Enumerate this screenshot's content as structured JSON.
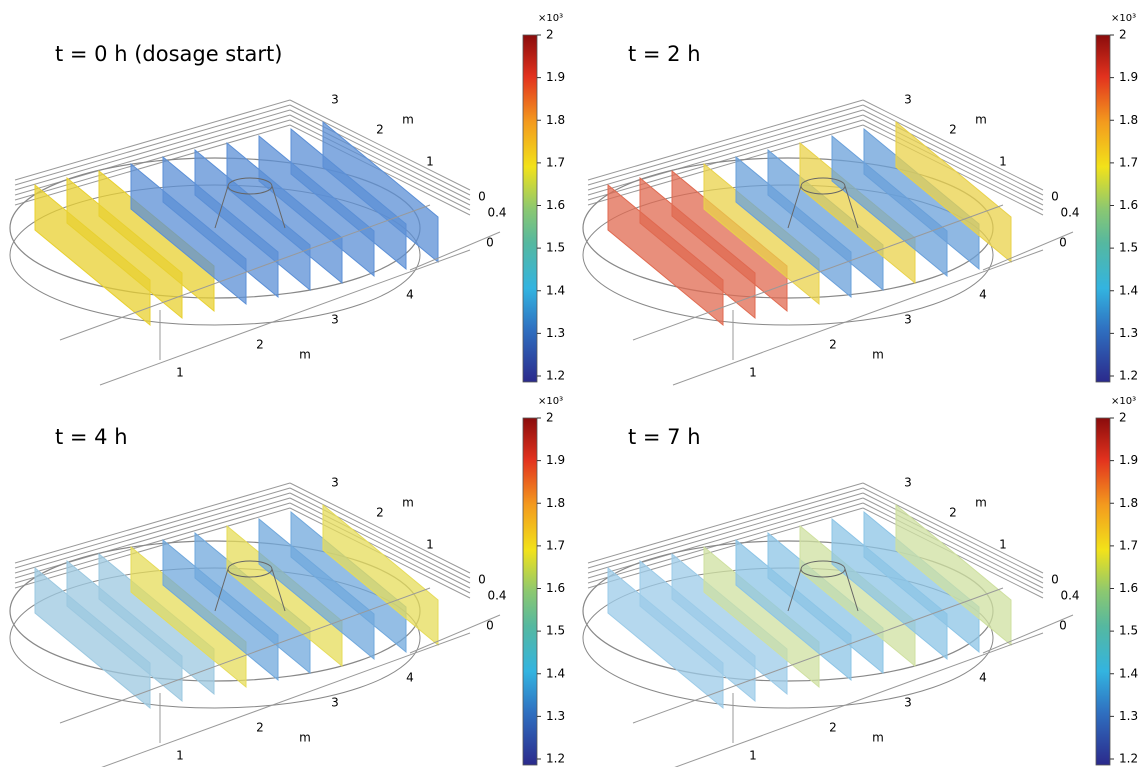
{
  "panels": [
    {
      "title": "t = 0 h (dosage start)",
      "colorbar": {
        "exponent_label": "×10³",
        "ticks": [
          2,
          1.9,
          1.8,
          1.7,
          1.6,
          1.5,
          1.4,
          1.3,
          1.2
        ]
      },
      "axis_labels": [
        "3",
        "2",
        "m",
        "1",
        "0",
        "0.4",
        "0",
        "4",
        "3",
        "2",
        "m",
        "1"
      ]
    },
    {
      "title": "t = 2 h",
      "colorbar": {
        "exponent_label": "×10³",
        "ticks": [
          2,
          1.9,
          1.8,
          1.7,
          1.6,
          1.5,
          1.4,
          1.3,
          1.2
        ]
      },
      "axis_labels": [
        "3",
        "2",
        "m",
        "1",
        "0",
        "0.4",
        "0",
        "4",
        "3",
        "2",
        "m",
        "1"
      ]
    },
    {
      "title": "t = 4 h",
      "colorbar": {
        "exponent_label": "×10³",
        "ticks": [
          2,
          1.9,
          1.8,
          1.7,
          1.6,
          1.5,
          1.4,
          1.3,
          1.2
        ]
      },
      "axis_labels": [
        "3",
        "2",
        "m",
        "1",
        "0",
        "0.4",
        "0",
        "4",
        "3",
        "2",
        "m",
        "1"
      ]
    },
    {
      "title": "t = 7 h",
      "colorbar": {
        "exponent_label": "×10³",
        "ticks": [
          2,
          1.9,
          1.8,
          1.7,
          1.6,
          1.5,
          1.4,
          1.3,
          1.2
        ]
      },
      "axis_labels": [
        "3",
        "2",
        "m",
        "1",
        "0",
        "0.4",
        "0",
        "4",
        "3",
        "2",
        "m",
        "1"
      ]
    }
  ]
}
